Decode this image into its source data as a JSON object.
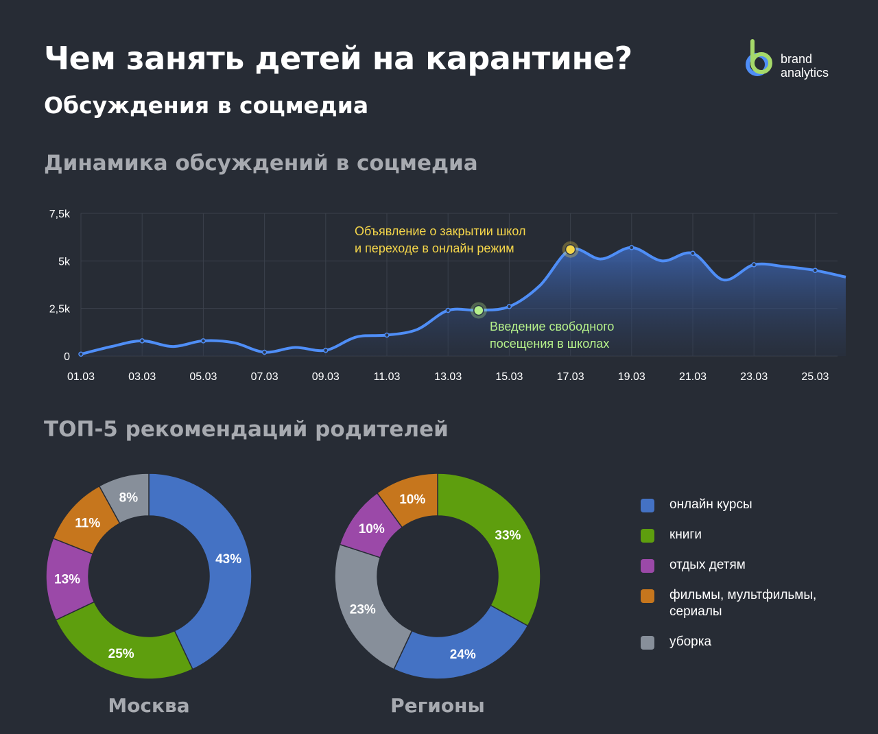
{
  "header": {
    "title": "Чем занять детей на карантине?",
    "subtitle": "Обсуждения в соцмедиа",
    "logo_line1": "brand",
    "logo_line2": "analytics"
  },
  "colors": {
    "background": "#272c35",
    "line": "#4f8ef7",
    "online_courses": "#4472c4",
    "books": "#5e9e0e",
    "kids_rest": "#9b49a8",
    "films": "#c6761d",
    "cleaning": "#878f9a",
    "annotation_yellow": "#f5d64a",
    "annotation_green": "#b5f08a"
  },
  "chart_data": [
    {
      "type": "area",
      "title": "Динамика обсуждений в соцмедиа",
      "x": [
        "01.03",
        "02.03",
        "03.03",
        "04.03",
        "05.03",
        "06.03",
        "07.03",
        "08.03",
        "09.03",
        "10.03",
        "11.03",
        "12.03",
        "13.03",
        "14.03",
        "15.03",
        "16.03",
        "17.03",
        "18.03",
        "19.03",
        "20.03",
        "21.03",
        "22.03",
        "23.03",
        "24.03",
        "25.03",
        "26.03"
      ],
      "x_tick_labels": [
        "01.03",
        "03.03",
        "05.03",
        "07.03",
        "09.03",
        "11.03",
        "13.03",
        "15.03",
        "17.03",
        "19.03",
        "21.03",
        "23.03",
        "25.03"
      ],
      "y": [
        100,
        500,
        800,
        500,
        800,
        700,
        200,
        450,
        300,
        1000,
        1100,
        1400,
        2400,
        2400,
        2600,
        3700,
        5600,
        5100,
        5700,
        5000,
        5400,
        4000,
        4800,
        4700,
        4500,
        4150
      ],
      "ylim": [
        0,
        7500
      ],
      "y_ticks": [
        0,
        2500,
        5000,
        7500
      ],
      "y_tick_labels": [
        "0",
        "2,5k",
        "5k",
        "7,5k"
      ],
      "grid": true,
      "annotations": [
        {
          "x": "17.03",
          "y": 5600,
          "text_lines": [
            "Объявление о закрытии школ",
            "и переходе в онлайн режим"
          ],
          "color": "#f5d64a"
        },
        {
          "x": "14.03",
          "y": 2400,
          "text_lines": [
            "Введение свободного",
            "посещения в школах"
          ],
          "color": "#b5f08a"
        }
      ]
    },
    {
      "type": "pie",
      "title": "ТОП-5 рекомендаций родителей",
      "donut": "Москва",
      "slices": [
        {
          "name": "онлайн курсы",
          "value": 43,
          "label": "43%"
        },
        {
          "name": "книги",
          "value": 25,
          "label": "25%"
        },
        {
          "name": "отдых детям",
          "value": 13,
          "label": "13%"
        },
        {
          "name": "фильмы, мультфильмы, сериалы",
          "value": 11,
          "label": "11%"
        },
        {
          "name": "уборка",
          "value": 8,
          "label": "8%"
        }
      ]
    },
    {
      "type": "pie",
      "donut": "Регионы",
      "slices": [
        {
          "name": "книги",
          "value": 33,
          "label": "33%"
        },
        {
          "name": "онлайн курсы",
          "value": 24,
          "label": "24%"
        },
        {
          "name": "уборка",
          "value": 23,
          "label": "23%"
        },
        {
          "name": "отдых детям",
          "value": 10,
          "label": "10%"
        },
        {
          "name": "фильмы, мультфильмы, сериалы",
          "value": 10,
          "label": "10%"
        }
      ]
    }
  ],
  "sections": {
    "dynamics_title": "Динамика обсуждений в соцмедиа",
    "top_title": "ТОП-5 рекомендаций родителей"
  },
  "donuts": {
    "moscow_label": "Москва",
    "regions_label": "Регионы"
  },
  "legend": [
    {
      "label": "онлайн курсы",
      "color": "#4472c4"
    },
    {
      "label": "книги",
      "color": "#5e9e0e"
    },
    {
      "label": "отдых детям",
      "color": "#9b49a8"
    },
    {
      "label": "фильмы, мультфильмы, сериалы",
      "color": "#c6761d"
    },
    {
      "label": "уборка",
      "color": "#878f9a"
    }
  ]
}
